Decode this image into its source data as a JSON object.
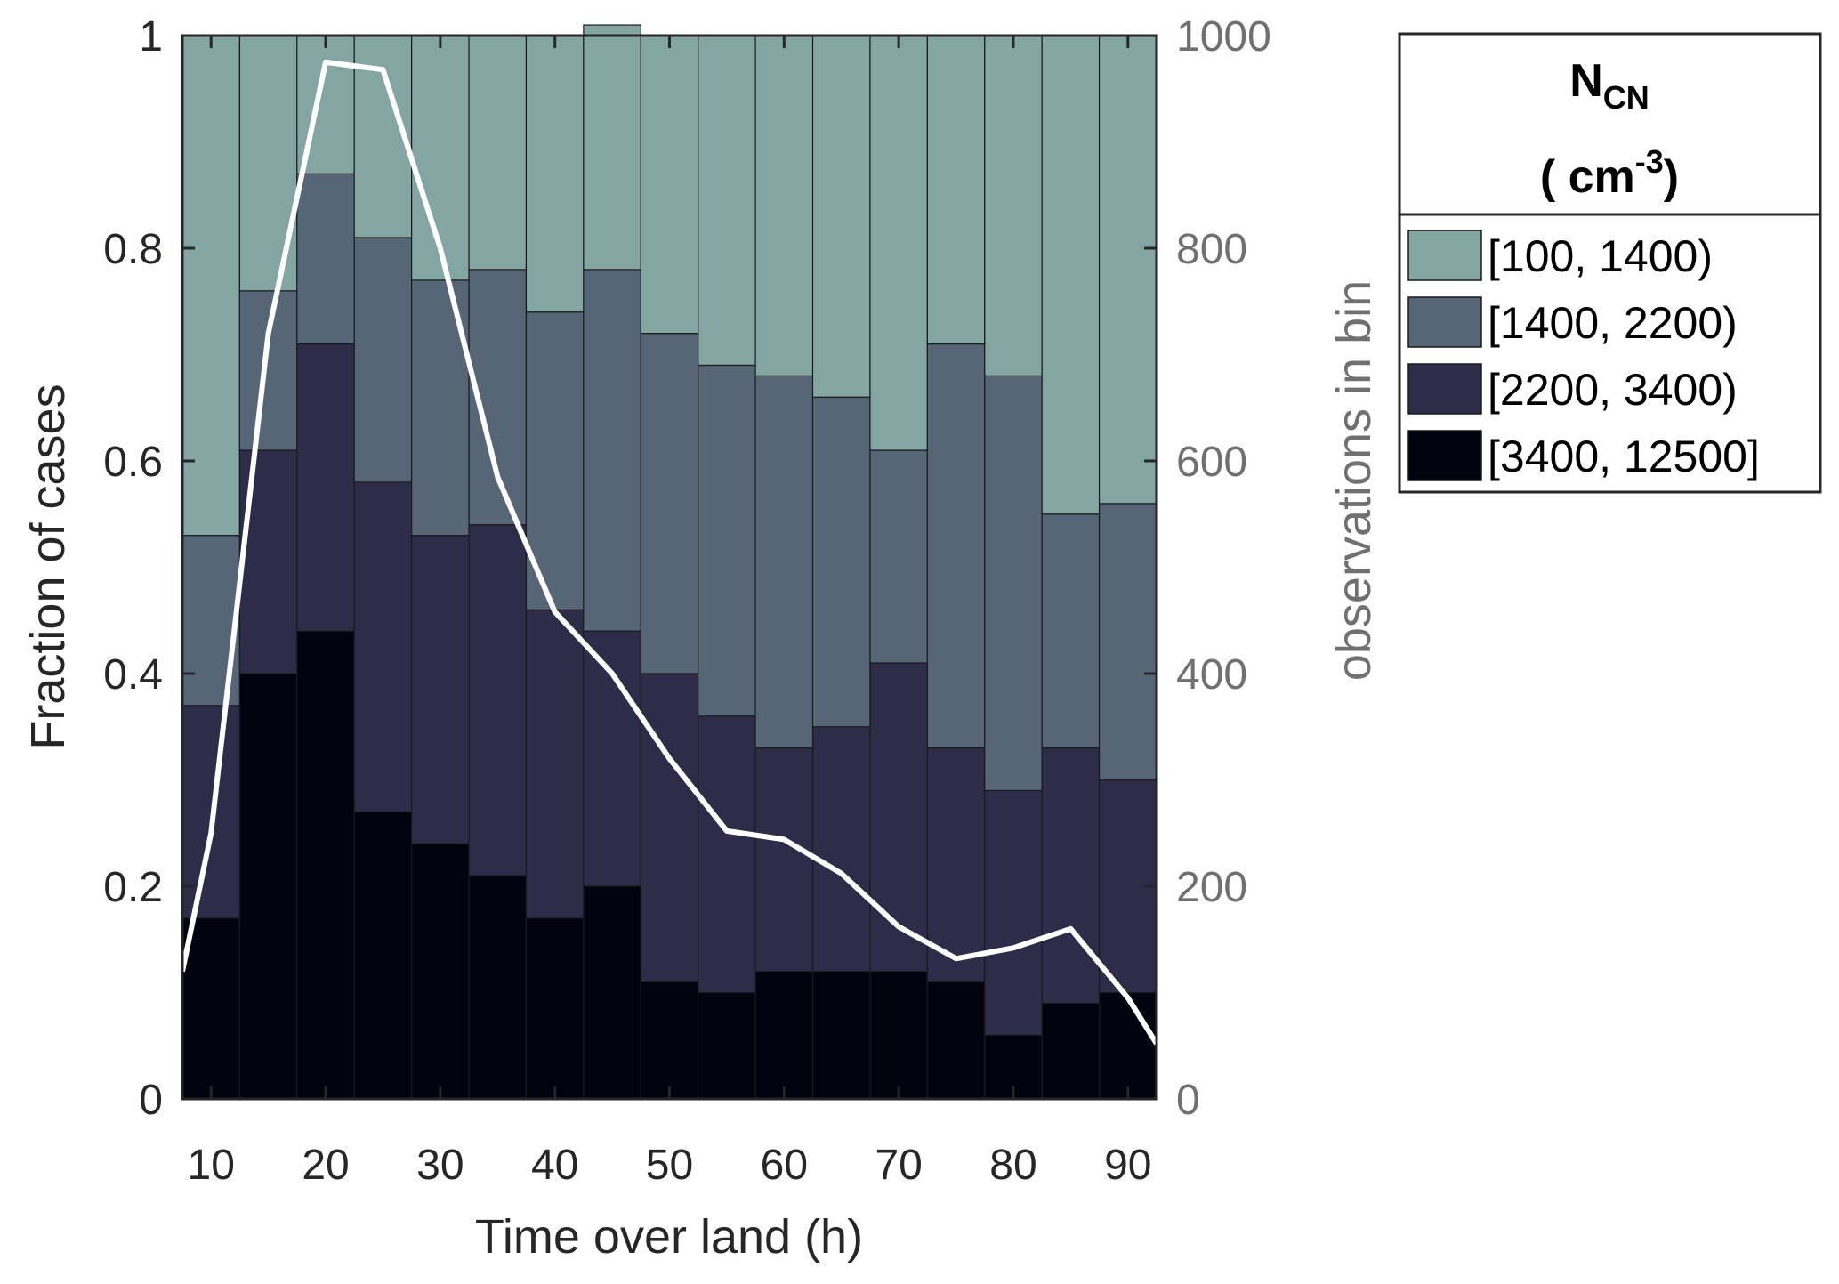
{
  "chart_data": {
    "type": "bar",
    "stacked": true,
    "xlabel": "Time over land (h)",
    "ylabel": "Fraction of cases",
    "y2label": "observations in bin",
    "xlim": [
      7.5,
      92.5
    ],
    "ylim": [
      0,
      1
    ],
    "y2lim": [
      0,
      1000
    ],
    "x_ticks": [
      "10",
      "20",
      "30",
      "40",
      "50",
      "60",
      "70",
      "80",
      "90"
    ],
    "y_ticks": [
      "0",
      "0.2",
      "0.4",
      "0.6",
      "0.8",
      "1"
    ],
    "y2_ticks": [
      "0",
      "200",
      "400",
      "600",
      "800",
      "1000"
    ],
    "bin_width": 5,
    "x": [
      10,
      15,
      20,
      25,
      30,
      35,
      40,
      45,
      50,
      55,
      60,
      65,
      70,
      75,
      80,
      85,
      90
    ],
    "series": [
      {
        "name": "[3400, 12500]",
        "color": "#03020f",
        "values": [
          0.17,
          0.4,
          0.44,
          0.27,
          0.24,
          0.21,
          0.17,
          0.2,
          0.11,
          0.1,
          0.12,
          0.12,
          0.12,
          0.11,
          0.06,
          0.09,
          0.1
        ]
      },
      {
        "name": "[2200, 3400)",
        "color": "#2d2d4a",
        "values": [
          0.2,
          0.21,
          0.27,
          0.31,
          0.29,
          0.33,
          0.29,
          0.24,
          0.29,
          0.26,
          0.21,
          0.23,
          0.29,
          0.22,
          0.23,
          0.24,
          0.2
        ]
      },
      {
        "name": "[1400, 2200)",
        "color": "#566676",
        "values": [
          0.16,
          0.15,
          0.16,
          0.23,
          0.24,
          0.24,
          0.28,
          0.34,
          0.32,
          0.33,
          0.35,
          0.31,
          0.2,
          0.38,
          0.39,
          0.22,
          0.26
        ]
      },
      {
        "name": "[100, 1400)",
        "color": "#84a6a3",
        "values": [
          0.47,
          0.24,
          0.13,
          0.19,
          0.23,
          0.22,
          0.26,
          0.23,
          0.28,
          0.31,
          0.32,
          0.34,
          0.39,
          0.29,
          0.32,
          0.45,
          0.44
        ]
      }
    ],
    "line": {
      "name": "observations in bin",
      "axis": "right",
      "color": "#ffffff",
      "x": [
        7.5,
        10,
        15,
        20,
        25,
        30,
        35,
        40,
        45,
        50,
        55,
        60,
        65,
        70,
        75,
        80,
        85,
        90,
        92.5
      ],
      "values": [
        120,
        250,
        720,
        975,
        968,
        800,
        585,
        458,
        400,
        320,
        252,
        244,
        212,
        162,
        132,
        142,
        160,
        95,
        52
      ]
    },
    "legend": {
      "title_main": "N",
      "title_sub": "CN",
      "title_unit_open": "( cm",
      "title_unit_sup": "-3",
      "title_unit_close": ")",
      "position": "outside-right"
    }
  }
}
